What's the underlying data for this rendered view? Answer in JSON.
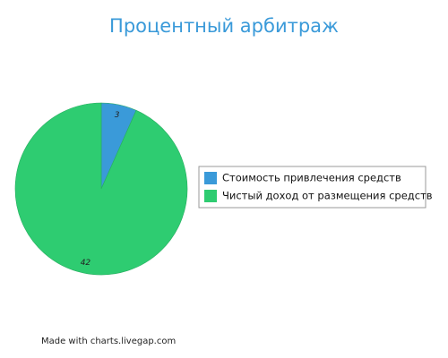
{
  "chart_data": {
    "type": "pie",
    "title": "Процентный арбитраж",
    "categories": [
      "Стоимость привлечения средств",
      "Чистый доход от размещения средств"
    ],
    "values": [
      3,
      42
    ],
    "colors": [
      "#3a9ad9",
      "#2ecc71"
    ],
    "legend": "right",
    "credit": "Made with charts.livegap.com"
  }
}
